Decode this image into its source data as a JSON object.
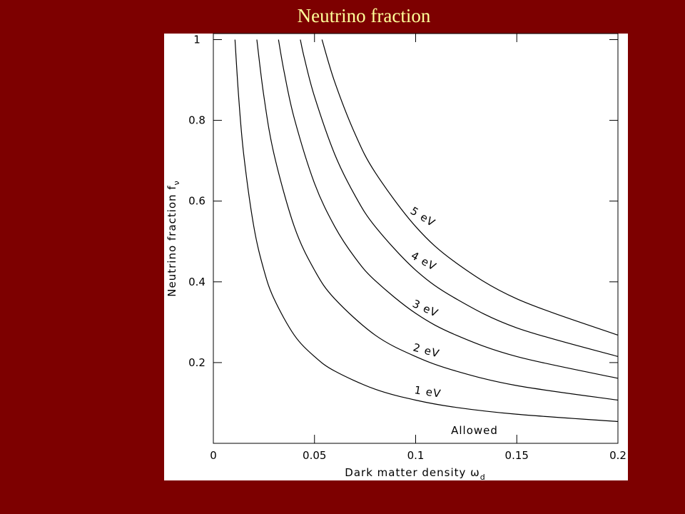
{
  "chart_data": {
    "type": "line",
    "title": "Neutrino fraction",
    "x_label": "Dark matter density ω",
    "x_label_subscript": "d",
    "y_label": "Neutrino fraction f",
    "y_label_subscript": "ν",
    "xlim": [
      0,
      0.2
    ],
    "ylim": [
      0,
      1.015
    ],
    "xticks": [
      0,
      0.05,
      0.1,
      0.15,
      0.2
    ],
    "yticks": [
      0.2,
      0.4,
      0.6,
      0.8,
      1
    ],
    "color": "#000000",
    "series": [
      {
        "name": "1 eV",
        "x": [
          0.0107,
          0.0125,
          0.015,
          0.02,
          0.025,
          0.03,
          0.04,
          0.05,
          0.06,
          0.08,
          0.1,
          0.12,
          0.15,
          0.2
        ],
        "values": [
          1.0,
          0.859,
          0.716,
          0.537,
          0.429,
          0.358,
          0.268,
          0.215,
          0.179,
          0.134,
          0.107,
          0.089,
          0.072,
          0.054
        ]
      },
      {
        "name": "2 eV",
        "x": [
          0.0215,
          0.025,
          0.03,
          0.04,
          0.05,
          0.06,
          0.08,
          0.1,
          0.12,
          0.15,
          0.2
        ],
        "values": [
          1.0,
          0.859,
          0.716,
          0.537,
          0.429,
          0.358,
          0.268,
          0.215,
          0.179,
          0.143,
          0.107
        ]
      },
      {
        "name": "3 eV",
        "x": [
          0.0322,
          0.035,
          0.04,
          0.05,
          0.06,
          0.07,
          0.08,
          0.1,
          0.12,
          0.15,
          0.2
        ],
        "values": [
          1.0,
          0.92,
          0.805,
          0.644,
          0.537,
          0.46,
          0.403,
          0.322,
          0.268,
          0.215,
          0.161
        ]
      },
      {
        "name": "4 eV",
        "x": [
          0.043,
          0.045,
          0.05,
          0.06,
          0.07,
          0.08,
          0.1,
          0.12,
          0.15,
          0.2
        ],
        "values": [
          1.0,
          0.954,
          0.859,
          0.716,
          0.614,
          0.537,
          0.429,
          0.358,
          0.286,
          0.215
        ]
      },
      {
        "name": "5 eV",
        "x": [
          0.0537,
          0.06,
          0.07,
          0.08,
          0.1,
          0.12,
          0.15,
          0.2
        ],
        "values": [
          1.0,
          0.895,
          0.767,
          0.671,
          0.537,
          0.447,
          0.358,
          0.268
        ]
      }
    ],
    "annotation": "Allowed"
  }
}
